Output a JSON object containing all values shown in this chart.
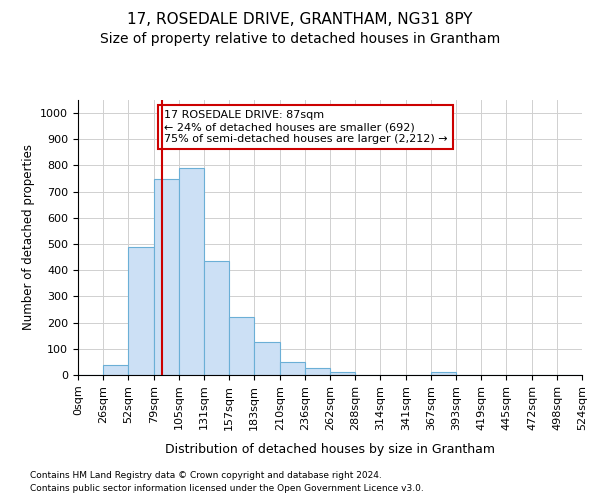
{
  "title1": "17, ROSEDALE DRIVE, GRANTHAM, NG31 8PY",
  "title2": "Size of property relative to detached houses in Grantham",
  "xlabel": "Distribution of detached houses by size in Grantham",
  "ylabel": "Number of detached properties",
  "footnote1": "Contains HM Land Registry data © Crown copyright and database right 2024.",
  "footnote2": "Contains public sector information licensed under the Open Government Licence v3.0.",
  "bar_color": "#cce0f5",
  "bar_edge_color": "#6bafd6",
  "bin_edges": [
    0,
    26,
    52,
    79,
    105,
    131,
    157,
    183,
    210,
    236,
    262,
    288,
    314,
    341,
    367,
    393,
    419,
    445,
    472,
    498,
    524
  ],
  "heights": [
    0,
    40,
    490,
    748,
    790,
    435,
    220,
    125,
    50,
    25,
    12,
    0,
    0,
    0,
    10,
    0,
    0,
    0,
    0,
    0
  ],
  "vline_x": 87,
  "vline_color": "#cc0000",
  "annotation_text": "17 ROSEDALE DRIVE: 87sqm\n← 24% of detached houses are smaller (692)\n75% of semi-detached houses are larger (2,212) →",
  "annotation_box_color": "#ffffff",
  "annotation_box_edge": "#cc0000",
  "ylim": [
    0,
    1050
  ],
  "yticks": [
    0,
    100,
    200,
    300,
    400,
    500,
    600,
    700,
    800,
    900,
    1000
  ],
  "grid_color": "#d0d0d0",
  "background_color": "#ffffff",
  "title1_fontsize": 11,
  "title2_fontsize": 10,
  "xlabel_fontsize": 9,
  "ylabel_fontsize": 8.5,
  "tick_fontsize": 8,
  "annot_fontsize": 8,
  "footnote_fontsize": 6.5
}
